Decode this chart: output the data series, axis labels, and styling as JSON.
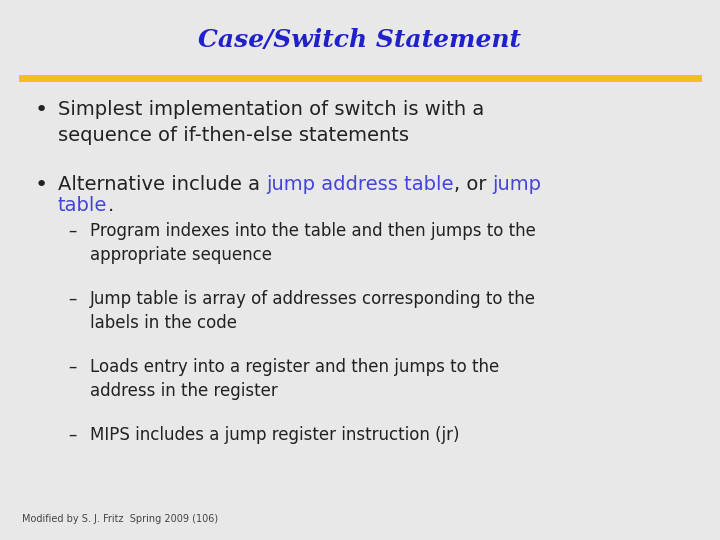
{
  "title": "Case/Switch Statement",
  "title_color": "#2020cc",
  "title_fontsize": 18,
  "line_color": "#f0c020",
  "bullet1_text": "Simplest implementation of switch is with a\nsequence of if-then-else statements",
  "bullet2_seg1": "Alternative include a ",
  "bullet2_seg2": "jump address table",
  "bullet2_seg3": ", or ",
  "bullet2_seg4": "jump",
  "bullet2_line2_blue": "table",
  "bullet2_line2_black": ".",
  "highlight_color": "#4444dd",
  "bullet_color": "#222222",
  "sub_bullets": [
    "Program indexes into the table and then jumps to the\nappropriate sequence",
    "Jump table is array of addresses corresponding to the\nlabels in the code",
    "Loads entry into a register and then jumps to the\naddress in the register",
    "MIPS includes a jump register instruction (jr)"
  ],
  "footer": "Modified by S. J. Fritz  Spring 2009 (106)",
  "bullet_fontsize": 14,
  "sub_fontsize": 12,
  "footer_fontsize": 7,
  "bg_color": "#e8e8e8"
}
